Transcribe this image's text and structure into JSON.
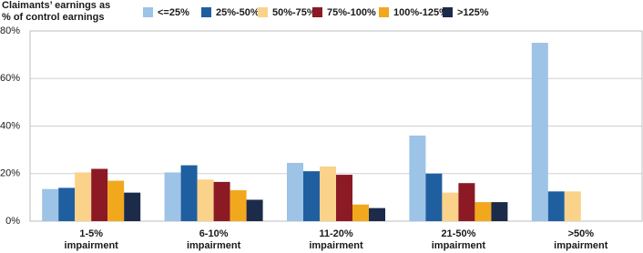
{
  "chart_data": {
    "type": "bar",
    "legend_title": [
      "Claimants’ earnings as",
      "% of control earnings"
    ],
    "categories": [
      [
        "1-5%",
        "impairment"
      ],
      [
        "6-10%",
        "impairment"
      ],
      [
        "11-20%",
        "impairment"
      ],
      [
        "21-50%",
        "impairment"
      ],
      [
        ">50%",
        "impairment"
      ]
    ],
    "series": [
      {
        "name": "<=25%",
        "color": "#9dc3e6",
        "values": [
          13.5,
          20.5,
          24.5,
          36,
          75
        ]
      },
      {
        "name": "25%-50%",
        "color": "#1f5fa0",
        "values": [
          14,
          23.5,
          21,
          20,
          12.5
        ]
      },
      {
        "name": "50%-75%",
        "color": "#fad28a",
        "values": [
          20.5,
          17.5,
          23,
          12,
          12.5
        ]
      },
      {
        "name": "75%-100%",
        "color": "#8b1a24",
        "values": [
          22,
          16.5,
          19.5,
          16,
          null
        ]
      },
      {
        "name": "100%-125%",
        "color": "#f2a81d",
        "values": [
          17,
          13,
          7,
          8,
          null
        ]
      },
      {
        "name": ">125%",
        "color": "#1c2b4a",
        "values": [
          12,
          9,
          5.5,
          8,
          null
        ]
      }
    ],
    "ylim": [
      0,
      80
    ],
    "yticks": [
      {
        "value": 0,
        "label": "0%"
      },
      {
        "value": 20,
        "label": "20%"
      },
      {
        "value": 40,
        "label": "40%"
      },
      {
        "value": 60,
        "label": "60%"
      },
      {
        "value": 80,
        "label": "80%"
      }
    ],
    "grid": true
  }
}
